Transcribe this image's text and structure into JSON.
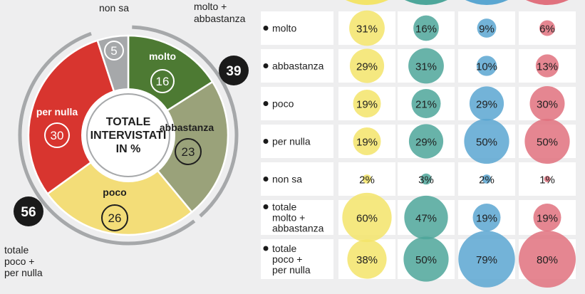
{
  "donut": {
    "center_label_lines": [
      "TOTALE",
      "INTERVISTATI",
      "IN %"
    ],
    "slices": [
      {
        "key": "molto",
        "label": "molto",
        "value": 16,
        "color": "#4d7a33"
      },
      {
        "key": "abbastanza",
        "label": "abbastanza",
        "value": 23,
        "color": "#9aa27a"
      },
      {
        "key": "poco",
        "label": "poco",
        "value": 26,
        "color": "#f3dd78"
      },
      {
        "key": "per-nulla",
        "label": "per nulla",
        "value": 30,
        "color": "#d8352f"
      },
      {
        "key": "non-sa",
        "label": "non sa",
        "value": 5,
        "color": "#a6a8aa"
      }
    ],
    "group_positive": {
      "lines": [
        "molto +",
        "abbastanza"
      ],
      "value": "39"
    },
    "group_negative": {
      "lines": [
        "totale",
        "poco +",
        "per nulla"
      ],
      "value": "56"
    }
  },
  "chart_data": {
    "type": "table",
    "rows": [
      {
        "label_lines": [
          "molto"
        ],
        "values": [
          31,
          16,
          9,
          6
        ]
      },
      {
        "label_lines": [
          "abbastanza"
        ],
        "values": [
          29,
          31,
          10,
          13
        ]
      },
      {
        "label_lines": [
          "poco"
        ],
        "values": [
          19,
          21,
          29,
          30
        ]
      },
      {
        "label_lines": [
          "per nulla"
        ],
        "values": [
          19,
          29,
          50,
          50
        ]
      },
      {
        "label_lines": [
          "non sa"
        ],
        "values": [
          2,
          3,
          2,
          1
        ]
      },
      {
        "label_lines": [
          "totale",
          "molto +",
          "abbastanza"
        ],
        "values": [
          60,
          47,
          19,
          19
        ]
      },
      {
        "label_lines": [
          "totale",
          "poco +",
          "per nulla"
        ],
        "values": [
          38,
          50,
          79,
          80
        ]
      }
    ],
    "column_colors": [
      "#f3e46a",
      "#4da69a",
      "#5aa6d1",
      "#e0717e"
    ]
  }
}
